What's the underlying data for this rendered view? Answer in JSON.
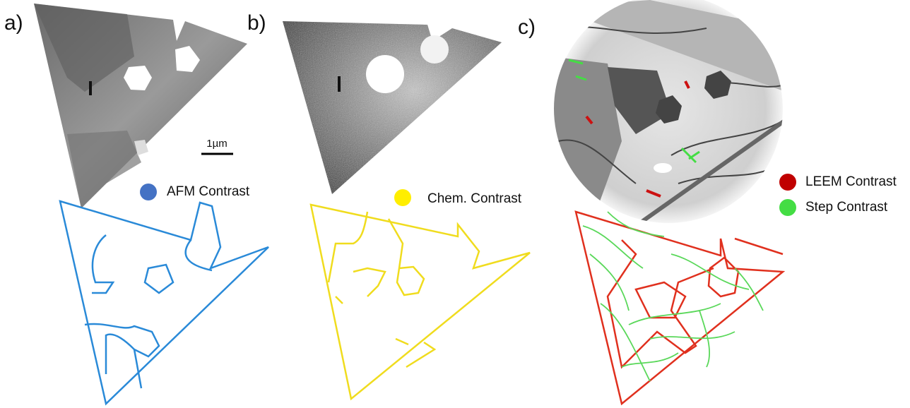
{
  "panels": [
    {
      "label": "a)",
      "legend": "AFM Contrast",
      "scale_bar": "1µm"
    },
    {
      "label": "b)",
      "legend": "Chem. Contrast"
    },
    {
      "label": "c)",
      "legends": [
        "LEEM Contrast",
        "Step Contrast"
      ]
    }
  ]
}
